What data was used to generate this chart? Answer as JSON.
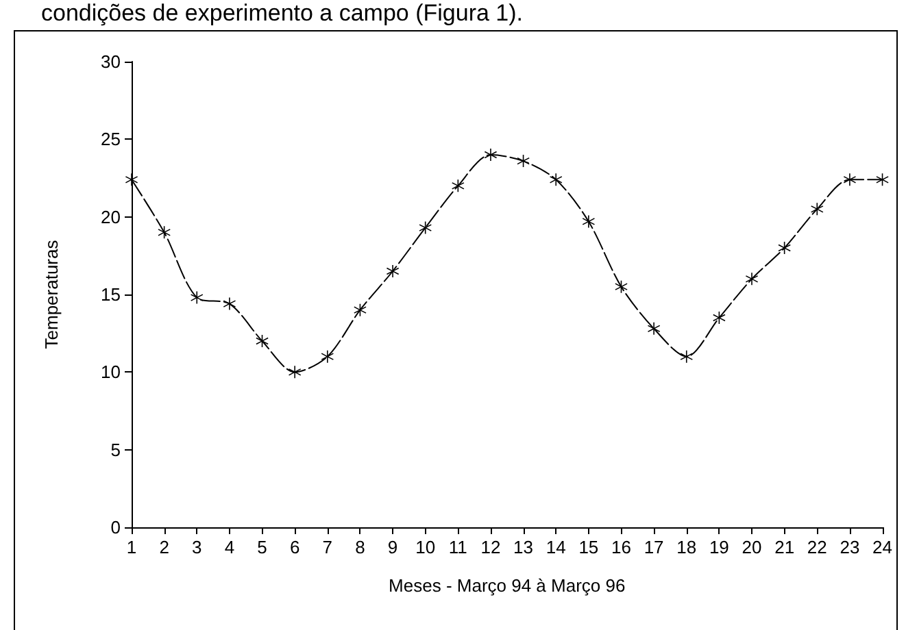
{
  "chart_data": {
    "type": "line",
    "xlabel": "Meses - Março 94 à Março 96",
    "ylabel": "Temperaturas",
    "annotations": [
      "condições de experimento a campo (Figura 1)."
    ],
    "x": [
      1,
      2,
      3,
      4,
      5,
      6,
      7,
      8,
      9,
      10,
      11,
      12,
      13,
      14,
      15,
      16,
      17,
      18,
      19,
      20,
      21,
      22,
      23,
      24
    ],
    "series": [
      {
        "color": "#000000",
        "values": [
          22.4,
          19,
          14.8,
          14.4,
          12,
          10,
          11,
          14,
          16.5,
          19.3,
          22,
          24,
          23.6,
          22.4,
          19.7,
          15.5,
          12.8,
          11,
          13.5,
          16,
          18,
          20.5,
          22.4,
          22.4
        ]
      }
    ],
    "xlim": [
      1,
      24
    ],
    "xticks": [
      1,
      2,
      3,
      4,
      5,
      6,
      7,
      8,
      9,
      10,
      11,
      12,
      13,
      14,
      15,
      16,
      17,
      18,
      19,
      20,
      21,
      22,
      23,
      24
    ],
    "ylim": [
      0,
      30
    ],
    "yticks": [
      0,
      5,
      10,
      15,
      20,
      25,
      30
    ],
    "grid": false,
    "marker": "star",
    "line_style": "dashed"
  }
}
